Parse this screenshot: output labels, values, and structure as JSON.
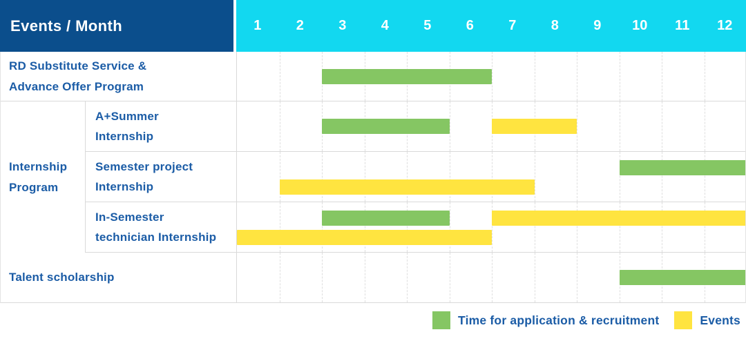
{
  "header": {
    "title": "Events / Month",
    "months": [
      "1",
      "2",
      "3",
      "4",
      "5",
      "6",
      "7",
      "8",
      "9",
      "10",
      "11",
      "12"
    ]
  },
  "colors": {
    "header_bg": "#0B4E8C",
    "months_bg": "#12D8F0",
    "header_text": "#FFFFFF",
    "label_text": "#1B5CA6",
    "green": "#85C663",
    "yellow": "#FFE440",
    "row_border": "#D9D9D9",
    "grid_border": "#DEDEDE"
  },
  "group": {
    "label_lines": [
      "Internship",
      "Program"
    ]
  },
  "rows": [
    {
      "label_lines": [
        "RD Substitute Service &",
        "Advance Offer Program"
      ]
    },
    {
      "label_lines": [
        "A+Summer",
        "Internship"
      ]
    },
    {
      "label_lines": [
        "Semester project",
        "Internship"
      ]
    },
    {
      "label_lines": [
        "In-Semester",
        "technician Internship"
      ]
    },
    {
      "label_lines": [
        "Talent scholarship"
      ]
    }
  ],
  "legend": {
    "items": [
      {
        "color": "green",
        "label": "Time for application & recruitment"
      },
      {
        "color": "yellow",
        "label": "Events"
      }
    ]
  },
  "chart_data": {
    "type": "bar",
    "subtype": "gantt",
    "title": "Events / Month",
    "xlabel": "Month",
    "x_ticks": [
      1,
      2,
      3,
      4,
      5,
      6,
      7,
      8,
      9,
      10,
      11,
      12
    ],
    "xlim": [
      1,
      13
    ],
    "grid": true,
    "legend_position": "bottom-right",
    "series_legend": [
      "Time for application & recruitment",
      "Events"
    ],
    "rows": [
      {
        "group": null,
        "label": "RD Substitute Service & Advance Offer Program",
        "bars": [
          {
            "series": "Time for application & recruitment",
            "color": "green",
            "start_month": 3,
            "end_month": 6,
            "line": "center"
          }
        ]
      },
      {
        "group": "Internship Program",
        "label": "A+Summer Internship",
        "bars": [
          {
            "series": "Time for application & recruitment",
            "color": "green",
            "start_month": 3,
            "end_month": 5,
            "line": "center"
          },
          {
            "series": "Events",
            "color": "yellow",
            "start_month": 7,
            "end_month": 8,
            "line": "center"
          }
        ]
      },
      {
        "group": "Internship Program",
        "label": "Semester project Internship",
        "bars": [
          {
            "series": "Time for application & recruitment",
            "color": "green",
            "start_month": 10,
            "end_month": 12,
            "line": "top"
          },
          {
            "series": "Events",
            "color": "yellow",
            "start_month": 2,
            "end_month": 7,
            "line": "bottom"
          }
        ]
      },
      {
        "group": "Internship Program",
        "label": "In-Semester technician Internship",
        "bars": [
          {
            "series": "Time for application & recruitment",
            "color": "green",
            "start_month": 3,
            "end_month": 5,
            "line": "top"
          },
          {
            "series": "Events",
            "color": "yellow",
            "start_month": 7,
            "end_month": 12,
            "line": "top"
          },
          {
            "series": "Events",
            "color": "yellow",
            "start_month": 1,
            "end_month": 6,
            "line": "bottom"
          }
        ]
      },
      {
        "group": null,
        "label": "Talent scholarship",
        "bars": [
          {
            "series": "Time for application & recruitment",
            "color": "green",
            "start_month": 10,
            "end_month": 12,
            "line": "center"
          }
        ]
      }
    ]
  }
}
